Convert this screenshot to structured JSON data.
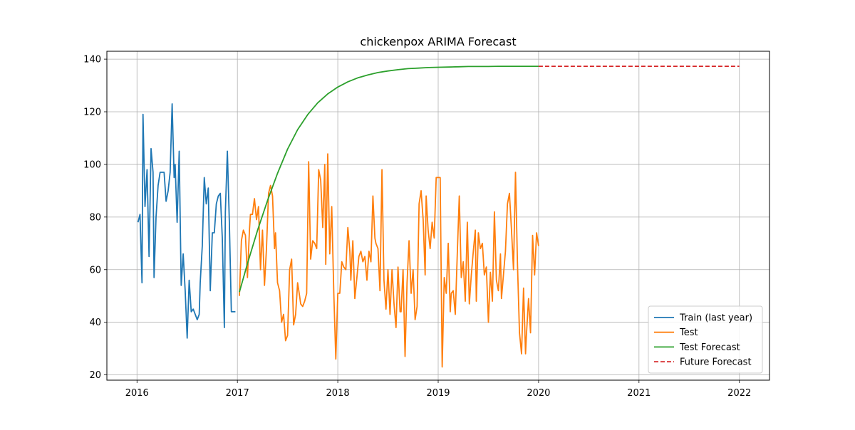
{
  "chart_data": {
    "type": "line",
    "title": "chickenpox ARIMA Forecast",
    "xlabel": "",
    "ylabel": "",
    "x_ticks": [
      "2016",
      "2017",
      "2018",
      "2019",
      "2020",
      "2021",
      "2022"
    ],
    "y_ticks": [
      20,
      40,
      60,
      80,
      100,
      120,
      140
    ],
    "xlim": [
      2015.7,
      2022.3
    ],
    "ylim": [
      18,
      143
    ],
    "grid": true,
    "legend_position": "lower-right",
    "series": [
      {
        "name": "Train (last year)",
        "color": "#1f77b4",
        "style": "solid",
        "x": [
          2016.01,
          2016.03,
          2016.05,
          2016.06,
          2016.08,
          2016.1,
          2016.12,
          2016.14,
          2016.16,
          2016.17,
          2016.19,
          2016.21,
          2016.23,
          2016.25,
          2016.27,
          2016.29,
          2016.31,
          2016.33,
          2016.35,
          2016.37,
          2016.38,
          2016.4,
          2016.42,
          2016.44,
          2016.46,
          2016.48,
          2016.5,
          2016.52,
          2016.54,
          2016.56,
          2016.58,
          2016.6,
          2016.62,
          2016.63,
          2016.65,
          2016.67,
          2016.69,
          2016.71,
          2016.73,
          2016.75,
          2016.77,
          2016.79,
          2016.81,
          2016.83,
          2016.85,
          2016.87,
          2016.88,
          2016.9,
          2016.92,
          2016.94,
          2016.96,
          2016.98
        ],
        "y": [
          78,
          81,
          55,
          119,
          84,
          98,
          65,
          106,
          97,
          57,
          80,
          92,
          97,
          97,
          97,
          86,
          90,
          97,
          123,
          95,
          100,
          78,
          105,
          54,
          66,
          52,
          34,
          56,
          44,
          45,
          43,
          41,
          43,
          55,
          69,
          95,
          85,
          91,
          52,
          74,
          74,
          85,
          88,
          89,
          72,
          38,
          82,
          105,
          78,
          44,
          44,
          44
        ]
      },
      {
        "name": "Test",
        "color": "#ff7f0e",
        "style": "solid",
        "x": [
          2017.02,
          2017.04,
          2017.06,
          2017.08,
          2017.1,
          2017.12,
          2017.13,
          2017.15,
          2017.17,
          2017.19,
          2017.21,
          2017.23,
          2017.25,
          2017.27,
          2017.29,
          2017.31,
          2017.33,
          2017.35,
          2017.37,
          2017.38,
          2017.4,
          2017.42,
          2017.44,
          2017.46,
          2017.48,
          2017.5,
          2017.52,
          2017.54,
          2017.56,
          2017.58,
          2017.6,
          2017.62,
          2017.63,
          2017.65,
          2017.67,
          2017.69,
          2017.71,
          2017.73,
          2017.75,
          2017.77,
          2017.79,
          2017.81,
          2017.83,
          2017.85,
          2017.87,
          2017.88,
          2017.9,
          2017.92,
          2017.94,
          2017.96,
          2017.98,
          2018.0,
          2018.02,
          2018.04,
          2018.06,
          2018.08,
          2018.1,
          2018.12,
          2018.13,
          2018.15,
          2018.17,
          2018.19,
          2018.21,
          2018.23,
          2018.25,
          2018.27,
          2018.29,
          2018.31,
          2018.33,
          2018.35,
          2018.37,
          2018.38,
          2018.4,
          2018.42,
          2018.44,
          2018.46,
          2018.48,
          2018.5,
          2018.52,
          2018.54,
          2018.56,
          2018.58,
          2018.6,
          2018.62,
          2018.63,
          2018.65,
          2018.67,
          2018.69,
          2018.71,
          2018.73,
          2018.75,
          2018.77,
          2018.79,
          2018.81,
          2018.83,
          2018.85,
          2018.87,
          2018.88,
          2018.9,
          2018.92,
          2018.94,
          2018.96,
          2018.98,
          2019.0,
          2019.02,
          2019.04,
          2019.06,
          2019.08,
          2019.1,
          2019.12,
          2019.13,
          2019.15,
          2019.17,
          2019.19,
          2019.21,
          2019.23,
          2019.25,
          2019.27,
          2019.29,
          2019.31,
          2019.33,
          2019.35,
          2019.37,
          2019.38,
          2019.4,
          2019.42,
          2019.44,
          2019.46,
          2019.48,
          2019.5,
          2019.52,
          2019.54,
          2019.56,
          2019.58,
          2019.6,
          2019.62,
          2019.63,
          2019.65,
          2019.67,
          2019.69,
          2019.71,
          2019.73,
          2019.75,
          2019.77,
          2019.79,
          2019.81,
          2019.83,
          2019.85,
          2019.87,
          2019.88,
          2019.9,
          2019.92,
          2019.94,
          2019.96,
          2019.98,
          2020.0
        ],
        "y": [
          50,
          71,
          75,
          73,
          57,
          75,
          81,
          81,
          87,
          79,
          84,
          60,
          75,
          54,
          68,
          89,
          92,
          88,
          68,
          74,
          55,
          52,
          40,
          43,
          33,
          35,
          60,
          64,
          39,
          43,
          55,
          50,
          47,
          46,
          48,
          51,
          101,
          64,
          71,
          70,
          68,
          98,
          94,
          76,
          100,
          62,
          104,
          66,
          84,
          51,
          26,
          51,
          51,
          63,
          61,
          60,
          76,
          67,
          56,
          71,
          49,
          57,
          65,
          67,
          63,
          65,
          56,
          67,
          63,
          88,
          72,
          70,
          68,
          52,
          98,
          56,
          45,
          60,
          43,
          60,
          47,
          38,
          61,
          44,
          44,
          60,
          27,
          55,
          71,
          51,
          60,
          41,
          46,
          85,
          90,
          79,
          58,
          88,
          75,
          68,
          78,
          72,
          95,
          95,
          95,
          23,
          57,
          51,
          70,
          44,
          51,
          52,
          43,
          66,
          88,
          57,
          63,
          48,
          78,
          47,
          58,
          67,
          75,
          48,
          74,
          68,
          70,
          58,
          61,
          40,
          59,
          48,
          82,
          56,
          52,
          66,
          49,
          58,
          67,
          85,
          89,
          75,
          60,
          97,
          62,
          36,
          28,
          53,
          28,
          36,
          49,
          36,
          73,
          58,
          74,
          69
        ]
      },
      {
        "name": "Test Forecast",
        "color": "#2ca02c",
        "style": "solid",
        "x": [
          2017.02,
          2017.1,
          2017.2,
          2017.3,
          2017.4,
          2017.5,
          2017.6,
          2017.7,
          2017.8,
          2017.9,
          2018.0,
          2018.1,
          2018.2,
          2018.3,
          2018.4,
          2018.5,
          2018.6,
          2018.7,
          2018.8,
          2018.9,
          2019.0,
          2019.1,
          2019.2,
          2019.3,
          2019.4,
          2019.5,
          2019.6,
          2019.7,
          2019.8,
          2019.9,
          2020.0
        ],
        "y": [
          51.5,
          62.3,
          74.9,
          86.3,
          96.6,
          105.8,
          113.2,
          118.9,
          123.4,
          126.8,
          129.4,
          131.4,
          132.9,
          134.0,
          134.9,
          135.5,
          136.0,
          136.4,
          136.6,
          136.8,
          136.9,
          137.0,
          137.1,
          137.2,
          137.2,
          137.2,
          137.3,
          137.3,
          137.3,
          137.3,
          137.3
        ]
      },
      {
        "name": "Future Forecast",
        "color": "#d62728",
        "style": "dashed",
        "x": [
          2020.0,
          2022.0
        ],
        "y": [
          137.3,
          137.3
        ]
      }
    ]
  }
}
